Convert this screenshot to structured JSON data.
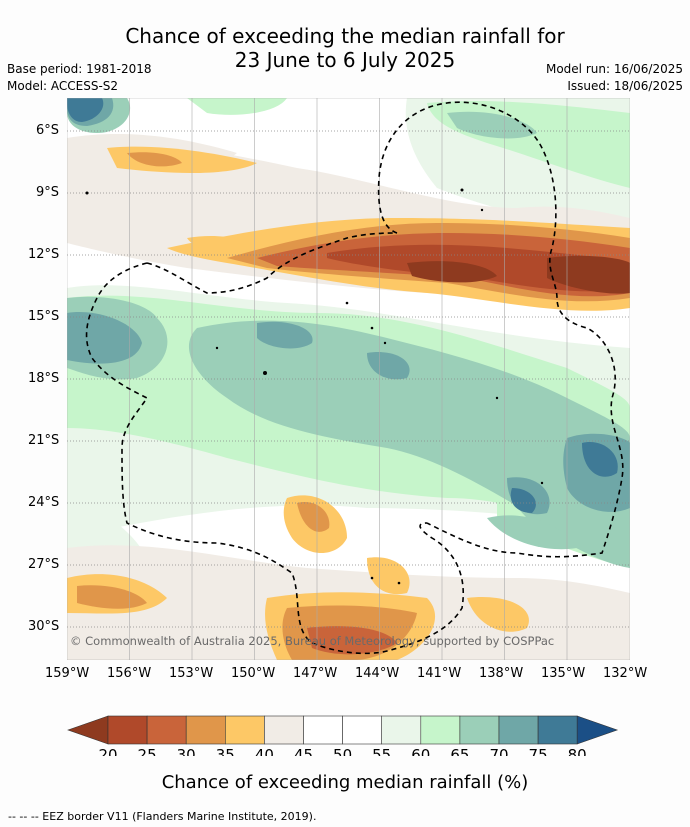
{
  "header": {
    "title_line1": "Chance of exceeding the median rainfall for",
    "title_line2": "23 June to 6 July 2025",
    "base_period": "Base period: 1981-2018",
    "model": "Model: ACCESS-S2",
    "model_run": "Model run: 16/06/2025",
    "issued": "Issued: 18/06/2025"
  },
  "map": {
    "lat_ticks": [
      "6°S",
      "9°S",
      "12°S",
      "15°S",
      "18°S",
      "21°S",
      "24°S",
      "27°S",
      "30°S"
    ],
    "lon_ticks": [
      "159°W",
      "156°W",
      "153°W",
      "150°W",
      "147°W",
      "144°W",
      "141°W",
      "138°W",
      "135°W",
      "132°W"
    ],
    "copyright": "© Commonwealth of Australia 2025, Bureau of Meteorology, supported by COSPPac"
  },
  "colorbar": {
    "ticks": [
      "20",
      "25",
      "30",
      "35",
      "40",
      "45",
      "50",
      "55",
      "60",
      "65",
      "70",
      "75",
      "80"
    ],
    "colors": [
      "#8e3a1f",
      "#b0492a",
      "#c9643a",
      "#e0964a",
      "#fdc866",
      "#f1ece6",
      "#ffffff",
      "#ffffff",
      "#eaf6ea",
      "#c6f5cb",
      "#9bcfb8",
      "#6fa7a7",
      "#3f7a96",
      "#1b4f86"
    ],
    "label": "Chance of exceeding median rainfall (%)"
  },
  "footnote": "--  --  -- EEZ border V11 (Flanders Marine Institute, 2019)."
}
